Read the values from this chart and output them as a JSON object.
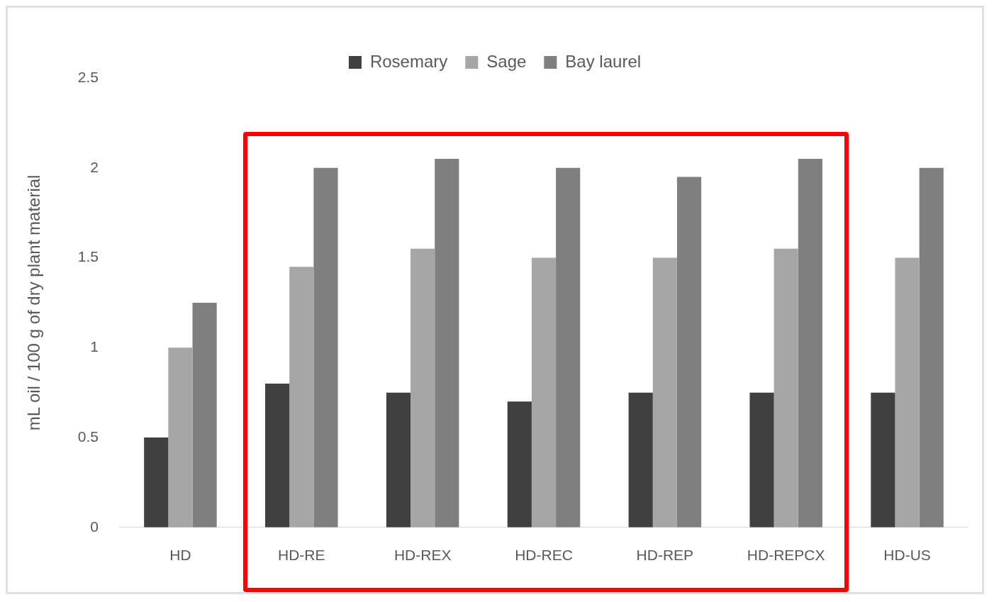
{
  "chart_data": {
    "type": "bar",
    "ylabel": "mL oil / 100 g of dry plant material",
    "categories": [
      "HD",
      "HD-RE",
      "HD-REX",
      "HD-REC",
      "HD-REP",
      "HD-REPCX",
      "HD-US"
    ],
    "series": [
      {
        "name": "Rosemary",
        "color": "#404040",
        "values": [
          0.5,
          0.8,
          0.75,
          0.7,
          0.75,
          0.75,
          0.75
        ]
      },
      {
        "name": "Sage",
        "color": "#a6a6a6",
        "values": [
          1.0,
          1.45,
          1.55,
          1.5,
          1.5,
          1.55,
          1.5
        ]
      },
      {
        "name": "Bay laurel",
        "color": "#7f7f7f",
        "values": [
          1.25,
          2.0,
          2.05,
          2.0,
          1.95,
          2.05,
          2.0
        ]
      }
    ],
    "ylim": [
      0,
      2.5
    ],
    "yticks": [
      0,
      0.5,
      1,
      1.5,
      2,
      2.5
    ],
    "grid": false,
    "legend": "top"
  }
}
